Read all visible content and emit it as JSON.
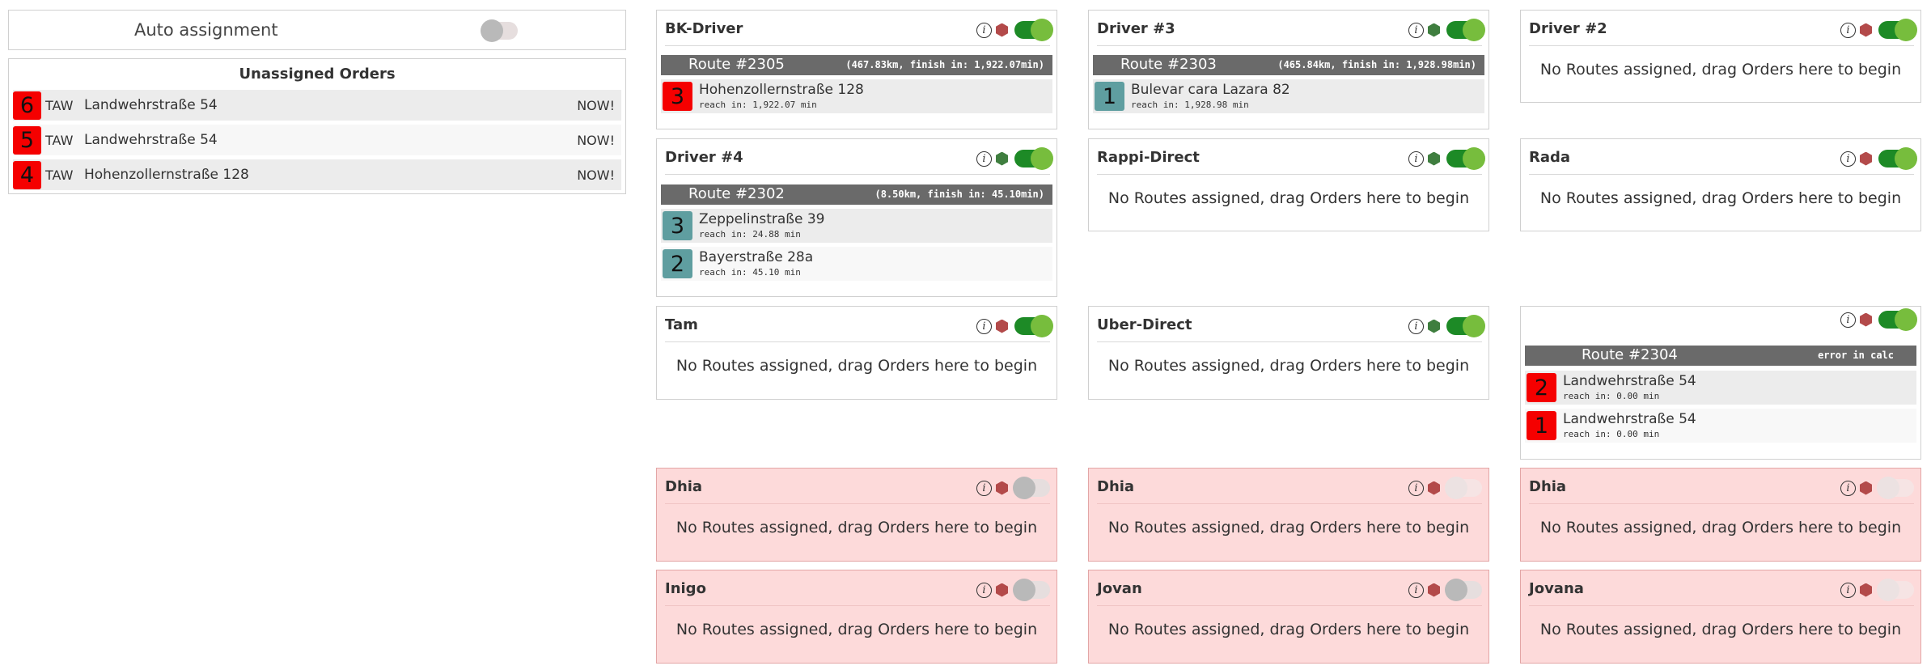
{
  "auto_assignment": {
    "label": "Auto assignment",
    "enabled": false
  },
  "unassigned": {
    "title": "Unassigned Orders",
    "orders": [
      {
        "number": "6",
        "code": "TAW",
        "address": "Landwehrstraße 54",
        "time": "NOW!"
      },
      {
        "number": "5",
        "code": "TAW",
        "address": "Landwehrstraße 54",
        "time": "NOW!"
      },
      {
        "number": "4",
        "code": "TAW",
        "address": "Hohenzollernstraße 128",
        "time": "NOW!"
      }
    ]
  },
  "empty_message": "No Routes assigned, drag Orders here to begin",
  "info_glyph": "i",
  "colors": {
    "badge_red": "#f50000",
    "badge_teal": "#5f9ea0",
    "status_red": "#b34a4a",
    "status_green": "#3f7e3f",
    "toggle_on": "#1d8a26",
    "inactive_bg": "#fddada"
  },
  "drivers": [
    {
      "name": "BK-Driver",
      "status": "red",
      "enabled": true,
      "active": true,
      "route": {
        "title": "Route #2305",
        "meta": "(467.83km, finish in: 1,922.07min)"
      },
      "stops": [
        {
          "number": "3",
          "color": "red",
          "address": "Hohenzollernstraße 128",
          "reach": "reach in: 1,922.07 min"
        }
      ]
    },
    {
      "name": "Driver #3",
      "status": "green",
      "enabled": true,
      "active": true,
      "route": {
        "title": "Route #2303",
        "meta": "(465.84km, finish in: 1,928.98min)"
      },
      "stops": [
        {
          "number": "1",
          "color": "teal",
          "address": "Bulevar cara Lazara 82",
          "reach": "reach in: 1,928.98 min"
        }
      ]
    },
    {
      "name": "Driver #2",
      "status": "red",
      "enabled": true,
      "active": true
    },
    {
      "name": "Driver #4",
      "status": "green",
      "enabled": true,
      "active": true,
      "route": {
        "title": "Route #2302",
        "meta": "(8.50km, finish in: 45.10min)"
      },
      "stops": [
        {
          "number": "3",
          "color": "teal",
          "address": "Zeppelinstraße 39",
          "reach": "reach in: 24.88 min"
        },
        {
          "number": "2",
          "color": "teal",
          "address": "Bayerstraße 28a",
          "reach": "reach in: 45.10 min"
        }
      ]
    },
    {
      "name": "Rappi-Direct",
      "status": "green",
      "enabled": true,
      "active": true
    },
    {
      "name": "Rada",
      "status": "red",
      "enabled": true,
      "active": true
    },
    {
      "name": "Tam",
      "status": "red",
      "enabled": true,
      "active": true
    },
    {
      "name": "Uber-Direct",
      "status": "green",
      "enabled": true,
      "active": true
    },
    {
      "name": "",
      "status": "red",
      "enabled": true,
      "active": true,
      "route": {
        "title": "Route #2304",
        "meta": "error in calc"
      },
      "stops": [
        {
          "number": "2",
          "color": "red",
          "address": "Landwehrstraße 54",
          "reach": "reach in: 0.00 min"
        },
        {
          "number": "1",
          "color": "red",
          "address": "Landwehrstraße 54",
          "reach": "reach in: 0.00 min"
        }
      ]
    },
    {
      "name": "Dhia",
      "status": "red",
      "enabled": false,
      "active": false
    },
    {
      "name": "Dhia",
      "status": "red",
      "enabled": false,
      "active": false
    },
    {
      "name": "Dhia",
      "status": "red",
      "enabled": false,
      "active": false
    },
    {
      "name": "Inigo",
      "status": "red",
      "enabled": false,
      "active": false
    },
    {
      "name": "Jovan",
      "status": "red",
      "enabled": false,
      "active": false
    },
    {
      "name": "Jovana",
      "status": "red",
      "enabled": false,
      "active": false
    }
  ]
}
